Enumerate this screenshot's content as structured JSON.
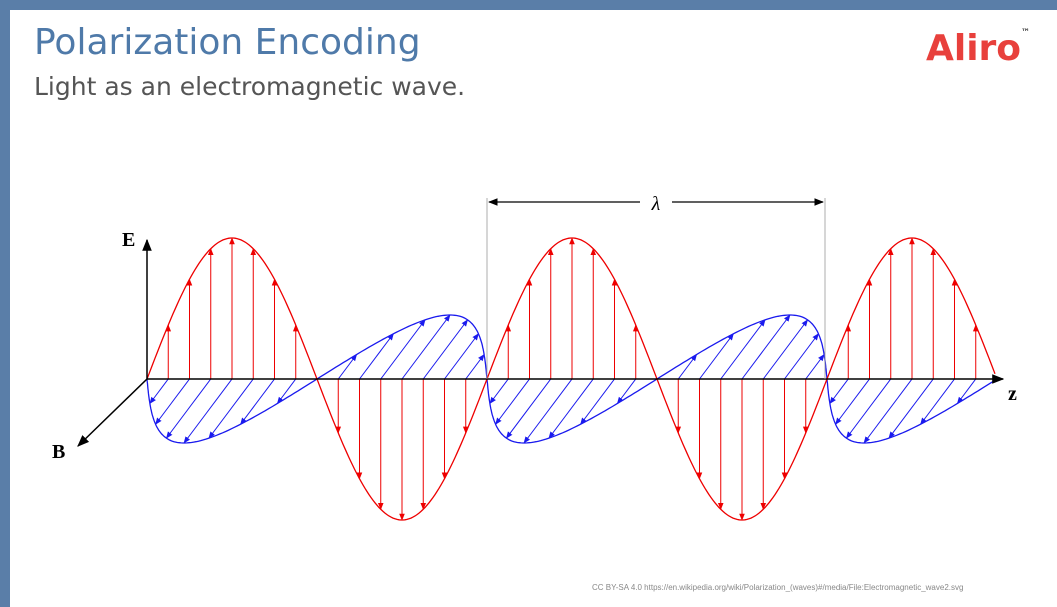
{
  "slide": {
    "title": "Polarization Encoding",
    "subtitle": "Light as an electromagnetic wave.",
    "logo": "Aliro",
    "logo_mark": "™",
    "diagram": {
      "e_label": "E",
      "b_label": "B",
      "z_label": "z",
      "wavelength_label": "λ"
    },
    "credit": "CC BY-SA 4.0 https://en.wikipedia.org/wiki/Polarization_(waves)#/media/File:Electromagnetic_wave2.svg"
  }
}
